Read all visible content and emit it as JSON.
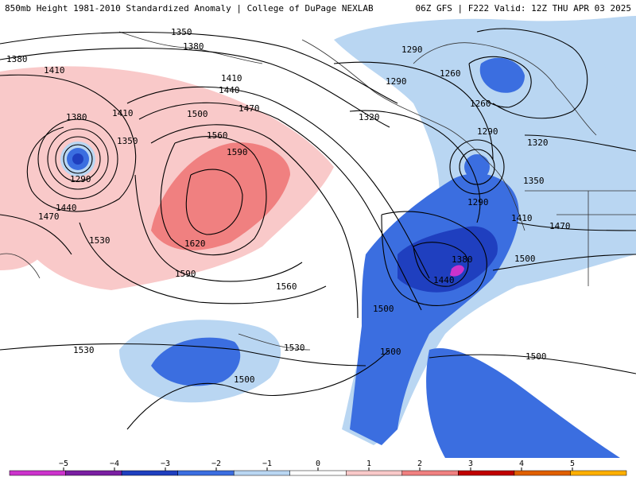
{
  "header": {
    "left": "850mb Height 1981-2010 Standardized Anomaly | College of DuPage NEXLAB",
    "right": "06Z GFS | F222 Valid: 12Z THU APR 03 2025"
  },
  "contour_labels": [
    "1350",
    "1380",
    "1380",
    "1410",
    "1410",
    "1440",
    "1470",
    "1500",
    "1560",
    "1590",
    "1620",
    "1590",
    "1560",
    "1530",
    "1530",
    "1500",
    "1380",
    "1410",
    "1350",
    "1290",
    "1440",
    "1470",
    "1530",
    "1290",
    "1290",
    "1260",
    "1260",
    "1320",
    "1290",
    "1320",
    "1350",
    "1290",
    "1410",
    "1470",
    "1380",
    "1440",
    "1500",
    "1500",
    "1500",
    "1500"
  ],
  "colorbar": {
    "ticks": [
      "−5",
      "−4",
      "−3",
      "−2",
      "−1",
      "0",
      "1",
      "2",
      "3",
      "4",
      "5"
    ],
    "colors": [
      "#cc33cc",
      "#7a1fa2",
      "#1f3fbf",
      "#3b6ee0",
      "#b9d6f2",
      "#ffffff",
      "#f9c9c9",
      "#f08080",
      "#c00000",
      "#e06000",
      "#ffb000"
    ]
  }
}
